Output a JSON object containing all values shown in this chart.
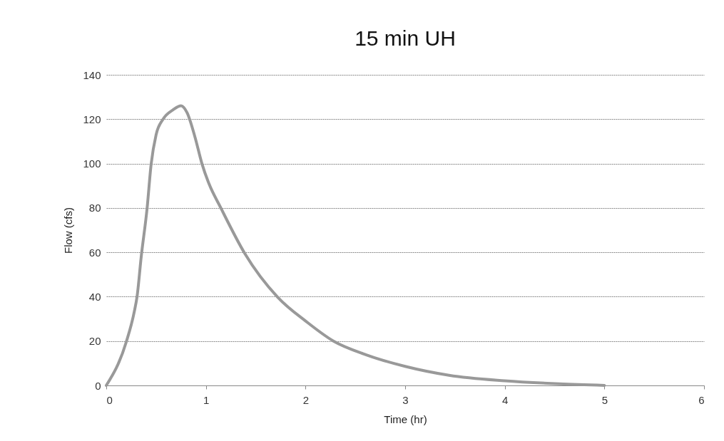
{
  "chart_data": {
    "type": "line",
    "title": "15 min UH",
    "xlabel": "Time (hr)",
    "ylabel": "Flow (cfs)",
    "x": [
      0,
      0.2,
      0.28,
      0.31,
      0.35,
      0.41,
      0.45,
      0.5,
      0.57,
      0.67,
      0.75,
      0.81,
      0.89,
      0.96,
      1.03,
      1.15,
      1.39,
      1.72,
      2.01,
      2.28,
      2.61,
      3,
      3.44,
      4,
      4.55,
      5
    ],
    "series": [
      {
        "color": "#999999",
        "values": [
          0,
          19.5,
          33,
          40.4,
          57.7,
          80,
          99.6,
          113,
          120,
          124.2,
          126,
          123,
          112,
          100,
          91,
          80,
          59.5,
          39.8,
          28.7,
          20,
          13.8,
          8.6,
          4.6,
          2.1,
          0.7,
          0
        ]
      }
    ],
    "xlim": [
      0,
      6
    ],
    "xticks": [
      0,
      1,
      2,
      3,
      4,
      5,
      6
    ],
    "ylim": [
      0,
      140
    ],
    "yticks": [
      0,
      20,
      40,
      60,
      80,
      100,
      120,
      140
    ],
    "grid": "y",
    "marker": "none",
    "line_style": "solid"
  }
}
